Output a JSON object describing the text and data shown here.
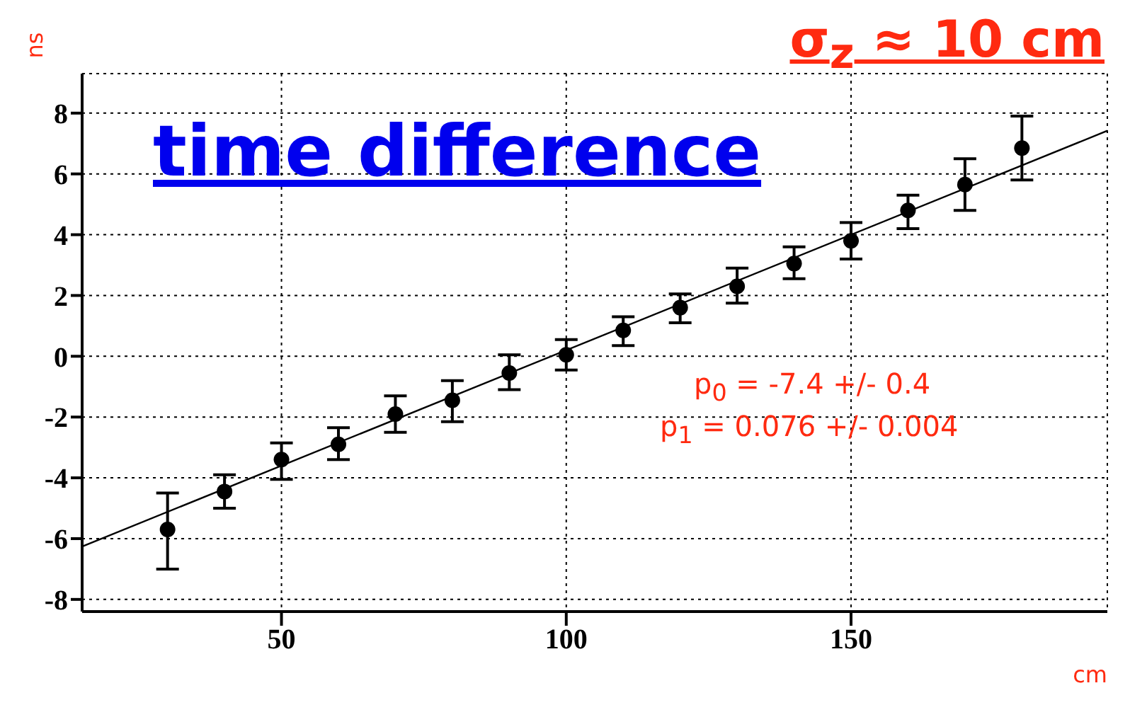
{
  "chart_data": {
    "type": "scatter",
    "title": "σ$_{z}$ ≈ 10 cm",
    "xlabel": "cm",
    "ylabel": "ns",
    "annotations": [
      "time difference",
      "p$_{0}$ = -7.4 +/- 0.4",
      "p$_{1}$ = 0.076 +/- 0.004"
    ],
    "xlim": [
      15,
      195
    ],
    "xticks": [
      50,
      100,
      150
    ],
    "ylim": [
      -8.4,
      9.3
    ],
    "yticks": [
      -8,
      -6,
      -4,
      -2,
      0,
      2,
      4,
      6,
      8
    ],
    "grid": true,
    "series": [
      {
        "marker": "circle",
        "color": "#000000",
        "x": [
          30,
          40,
          50,
          60,
          70,
          80,
          90,
          100,
          110,
          120,
          130,
          140,
          150,
          160,
          170,
          180
        ],
        "values": [
          -5.7,
          -4.45,
          -3.4,
          -2.9,
          -1.9,
          -1.45,
          -0.55,
          0.05,
          0.85,
          1.6,
          2.3,
          3.05,
          3.8,
          4.8,
          5.65,
          6.85
        ],
        "errors": [
          [
            -7.0,
            -4.5
          ],
          [
            -5.0,
            -3.9
          ],
          [
            -4.05,
            -2.85
          ],
          [
            -3.4,
            -2.35
          ],
          [
            -2.5,
            -1.3
          ],
          [
            -2.15,
            -0.8
          ],
          [
            -1.1,
            0.05
          ],
          [
            -0.45,
            0.55
          ],
          [
            0.35,
            1.3
          ],
          [
            1.1,
            2.05
          ],
          [
            1.75,
            2.9
          ],
          [
            2.55,
            3.6
          ],
          [
            3.2,
            4.4
          ],
          [
            4.2,
            5.3
          ],
          [
            4.8,
            6.5
          ],
          [
            5.8,
            7.9
          ]
        ]
      },
      {
        "type": "line",
        "color": "#000000",
        "x": [
          15,
          195
        ],
        "values": [
          -6.26,
          7.42
        ]
      }
    ]
  }
}
